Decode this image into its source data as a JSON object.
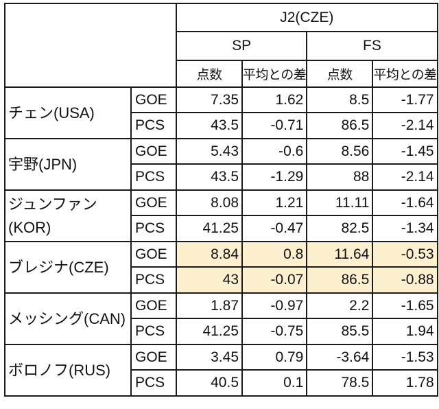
{
  "header": {
    "judge": "J2(CZE)",
    "sections": [
      "SP",
      "FS"
    ],
    "subcolumns": [
      "点数",
      "平均との差",
      "点数",
      "平均との差"
    ]
  },
  "skaters": [
    {
      "name": "チェン(USA)",
      "highlight": false,
      "rows": [
        {
          "metric": "GOE",
          "values": [
            "7.35",
            "1.62",
            "8.5",
            "-1.77"
          ]
        },
        {
          "metric": "PCS",
          "values": [
            "43.5",
            "-0.71",
            "86.5",
            "-2.14"
          ]
        }
      ]
    },
    {
      "name": "宇野(JPN)",
      "highlight": false,
      "rows": [
        {
          "metric": "GOE",
          "values": [
            "5.43",
            "-0.6",
            "8.56",
            "-1.45"
          ]
        },
        {
          "metric": "PCS",
          "values": [
            "43.5",
            "-1.29",
            "88",
            "-2.14"
          ]
        }
      ]
    },
    {
      "name": "ジュンファン(KOR)",
      "highlight": false,
      "rows": [
        {
          "metric": "GOE",
          "values": [
            "8.08",
            "1.21",
            "11.11",
            "-1.64"
          ]
        },
        {
          "metric": "PCS",
          "values": [
            "41.25",
            "-0.47",
            "82.5",
            "-1.34"
          ]
        }
      ]
    },
    {
      "name": "ブレジナ(CZE)",
      "highlight": true,
      "rows": [
        {
          "metric": "GOE",
          "values": [
            "8.84",
            "0.8",
            "11.64",
            "-0.53"
          ]
        },
        {
          "metric": "PCS",
          "values": [
            "43",
            "-0.07",
            "86.5",
            "-0.88"
          ]
        }
      ]
    },
    {
      "name": "メッシング(CAN)",
      "highlight": false,
      "rows": [
        {
          "metric": "GOE",
          "values": [
            "1.87",
            "-0.97",
            "2.2",
            "-1.65"
          ]
        },
        {
          "metric": "PCS",
          "values": [
            "41.25",
            "-0.75",
            "85.5",
            "1.94"
          ]
        }
      ]
    },
    {
      "name": "ボロノフ(RUS)",
      "highlight": false,
      "rows": [
        {
          "metric": "GOE",
          "values": [
            "3.45",
            "0.79",
            "-3.64",
            "-1.53"
          ]
        },
        {
          "metric": "PCS",
          "values": [
            "40.5",
            "0.1",
            "78.5",
            "1.78"
          ]
        }
      ]
    }
  ],
  "colors": {
    "highlight": "#fdf0cf",
    "border": "#1a1a1a"
  }
}
